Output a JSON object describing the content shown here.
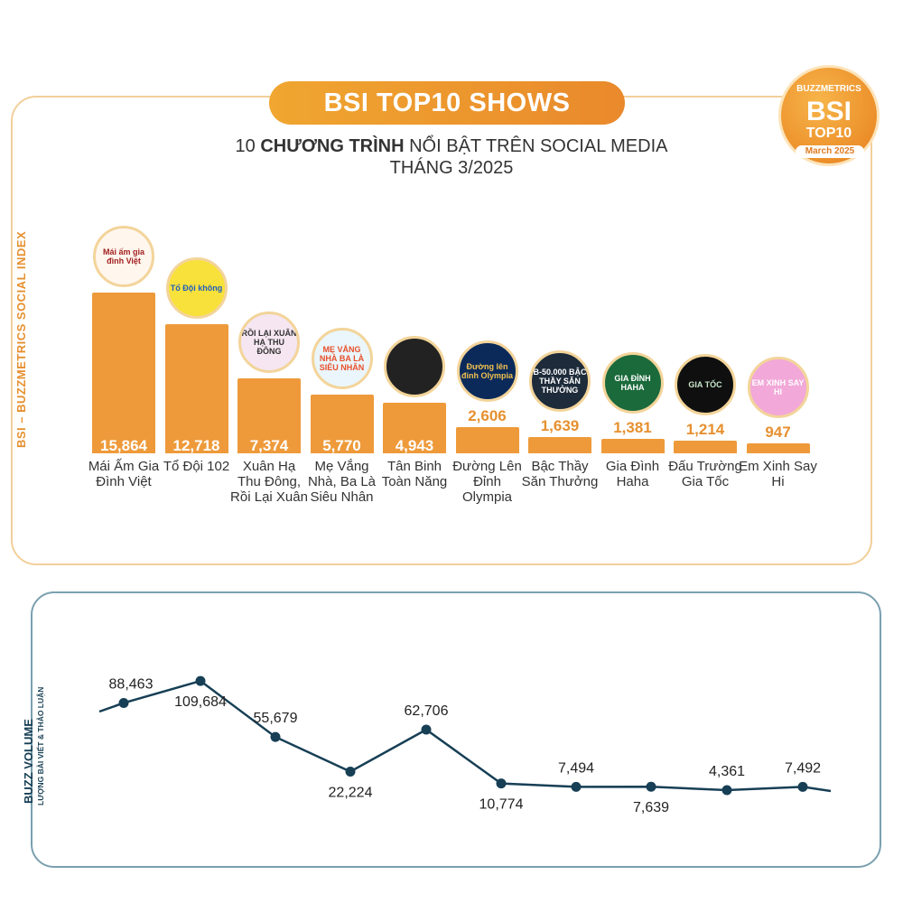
{
  "header": {
    "title": "BSI TOP10 SHOWS",
    "subtitle_prefix": "10",
    "subtitle_bold": "CHƯƠNG TRÌNH",
    "subtitle_rest": "NỔI BẬT TRÊN SOCIAL MEDIA",
    "subtitle_line2": "THÁNG 3/2025"
  },
  "badge": {
    "brand": "BUZZMETRICS",
    "big": "BSI",
    "top": "TOP10",
    "month": "March 2025"
  },
  "colors": {
    "bar": "#ee9a3a",
    "accent": "#f0a630",
    "line": "#173f55",
    "value_text_light": "#ffffff",
    "value_text_dark": "#e6902f"
  },
  "logos": [
    {
      "text": "Mái ấm gia đình Việt"
    },
    {
      "text": "Tổ Đội không"
    },
    {
      "text": "RỒI LẠI XUÂN HẠ THU ĐÔNG"
    },
    {
      "text": "MẸ VẮNG NHÀ BA LÀ SIÊU NHÂN"
    },
    {
      "text": ""
    },
    {
      "text": "Đường lên đỉnh Olympia"
    },
    {
      "text": "B-50.000 BẬC THẦY SĂN THƯỞNG"
    },
    {
      "text": "GIA ĐÌNH HAHA"
    },
    {
      "text": "GIA TỐC"
    },
    {
      "text": "EM XINH SAY HI"
    }
  ],
  "chart_data": [
    {
      "type": "bar",
      "title": "BSI TOP10 SHOWS",
      "ylabel": "BSI – BUZZMETRICS SOCIAL INDEX",
      "categories": [
        "Mái Ấm Gia Đình Việt",
        "Tổ Đội 102",
        "Xuân Hạ Thu Đông, Rồi Lại Xuân",
        "Mẹ Vắng Nhà, Ba Là Siêu Nhân",
        "Tân Binh Toàn Năng",
        "Đường Lên Đỉnh Olympia",
        "Bậc Thầy Săn Thưởng",
        "Gia Đình Haha",
        "Đấu Trường Gia Tốc",
        "Em Xinh Say Hi"
      ],
      "values": [
        15864,
        12718,
        7374,
        5770,
        4943,
        2606,
        1639,
        1381,
        1214,
        947
      ],
      "value_labels": [
        "15,864",
        "12,718",
        "7,374",
        "5,770",
        "4,943",
        "2,606",
        "1,639",
        "1,381",
        "1,214",
        "947"
      ],
      "ylim": [
        0,
        16000
      ]
    },
    {
      "type": "line",
      "ylabel": "BUZZ VOLUME",
      "ylabel_sub": "LƯỢNG BÀI VIẾT & THẢO LUẬN",
      "values": [
        88463,
        109684,
        55679,
        22224,
        62706,
        10774,
        7494,
        7639,
        4361,
        7492
      ],
      "value_labels": [
        "88,463",
        "109,684",
        "55,679",
        "22,224",
        "62,706",
        "10,774",
        "7,494",
        "7,639",
        "4,361",
        "7,492"
      ],
      "ylim": [
        0,
        115000
      ]
    }
  ]
}
